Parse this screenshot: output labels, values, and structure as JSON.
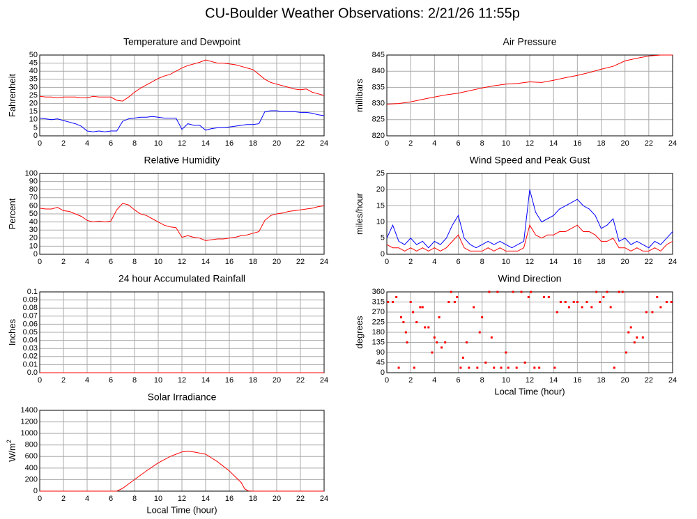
{
  "title": "CU-Boulder Weather Observations: 2/21/26 11:55p",
  "chart_data": [
    {
      "type": "line",
      "title": "Temperature and Dewpoint",
      "ylabel": "Fahrenheit",
      "grid": true,
      "xlim": [
        0,
        24
      ],
      "xticks": [
        0,
        2,
        4,
        6,
        8,
        10,
        12,
        14,
        16,
        18,
        20,
        22,
        24
      ],
      "ylim": [
        0,
        50
      ],
      "yticks": [
        0,
        5,
        10,
        15,
        20,
        25,
        30,
        35,
        40,
        45,
        50
      ],
      "x": [
        0,
        0.5,
        1,
        1.5,
        2,
        2.5,
        3,
        3.5,
        4,
        4.5,
        5,
        5.5,
        6,
        6.5,
        7,
        7.5,
        8,
        8.5,
        9,
        9.5,
        10,
        10.5,
        11,
        11.5,
        12,
        12.5,
        13,
        13.5,
        14,
        14.5,
        15,
        15.5,
        16,
        16.5,
        17,
        17.5,
        18,
        18.5,
        19,
        19.5,
        20,
        20.5,
        21,
        21.5,
        22,
        22.5,
        23,
        23.5,
        24
      ],
      "series": [
        {
          "color": "#ff0000",
          "values": [
            24.5,
            24,
            24,
            23.5,
            24,
            24,
            24,
            23.5,
            23.5,
            24.5,
            24,
            24,
            24,
            22,
            21.5,
            24,
            27,
            29.5,
            31.5,
            33.5,
            35.5,
            37,
            38,
            40,
            42,
            43.5,
            44.5,
            45.5,
            47,
            46,
            45,
            45,
            44.5,
            44,
            43,
            42,
            41,
            38,
            35,
            33,
            32,
            31,
            30,
            29,
            28.5,
            29,
            27,
            26,
            25
          ]
        },
        {
          "color": "#0000ff",
          "values": [
            11,
            10.5,
            10,
            10.5,
            9.5,
            8.5,
            7.5,
            6,
            3,
            2.5,
            3,
            2.5,
            3,
            3,
            9,
            10.5,
            11,
            11.5,
            11.5,
            12,
            11.5,
            11,
            11,
            11,
            4,
            7.5,
            6.5,
            6.5,
            3.5,
            4.5,
            5,
            5,
            5.5,
            6,
            6.5,
            7,
            7,
            7.5,
            15,
            15.5,
            15.5,
            15,
            15,
            15,
            14.5,
            14.5,
            14,
            13,
            12.5
          ]
        }
      ]
    },
    {
      "type": "line",
      "title": "Air Pressure",
      "ylabel": "millibars",
      "grid": true,
      "xlim": [
        0,
        24
      ],
      "xticks": [
        0,
        2,
        4,
        6,
        8,
        10,
        12,
        14,
        16,
        18,
        20,
        22,
        24
      ],
      "ylim": [
        820,
        845
      ],
      "yticks": [
        820,
        825,
        830,
        835,
        840,
        845
      ],
      "x": [
        0,
        1,
        2,
        3,
        4,
        5,
        6,
        7,
        8,
        9,
        10,
        11,
        12,
        13,
        14,
        15,
        16,
        17,
        18,
        19,
        20,
        21,
        22,
        23,
        24
      ],
      "series": [
        {
          "color": "#ff0000",
          "values": [
            829.8,
            830,
            830.5,
            831.3,
            832,
            832.7,
            833.2,
            834,
            834.8,
            835.5,
            836,
            836.2,
            836.7,
            836.5,
            837.2,
            838,
            838.7,
            839.6,
            840.6,
            841.5,
            843.2,
            844,
            844.7,
            845,
            845
          ]
        }
      ]
    },
    {
      "type": "line",
      "title": "Relative Humidity",
      "ylabel": "Percent",
      "grid": true,
      "xlim": [
        0,
        24
      ],
      "xticks": [
        0,
        2,
        4,
        6,
        8,
        10,
        12,
        14,
        16,
        18,
        20,
        22,
        24
      ],
      "ylim": [
        0,
        100
      ],
      "yticks": [
        0,
        10,
        20,
        30,
        40,
        50,
        60,
        70,
        80,
        90,
        100
      ],
      "x": [
        0,
        0.5,
        1,
        1.5,
        2,
        2.5,
        3,
        3.5,
        4,
        4.5,
        5,
        5.5,
        6,
        6.5,
        7,
        7.5,
        8,
        8.5,
        9,
        9.5,
        10,
        10.5,
        11,
        11.5,
        12,
        12.5,
        13,
        13.5,
        14,
        14.5,
        15,
        15.5,
        16,
        16.5,
        17,
        17.5,
        18,
        18.5,
        19,
        19.5,
        20,
        20.5,
        21,
        21.5,
        22,
        22.5,
        23,
        23.5,
        24
      ],
      "series": [
        {
          "color": "#ff0000",
          "values": [
            57,
            56,
            56,
            58,
            54,
            53,
            50,
            47,
            42,
            40,
            41,
            40,
            41,
            55,
            63,
            61,
            55,
            50,
            48,
            44,
            40,
            36,
            34,
            33,
            21,
            23,
            21,
            20,
            17,
            18,
            19,
            19,
            20,
            21,
            23,
            24,
            26,
            28,
            42,
            48,
            50,
            51,
            53,
            54,
            55,
            56,
            57,
            59,
            60
          ]
        }
      ]
    },
    {
      "type": "line",
      "title": "Wind Speed and Peak Gust",
      "ylabel": "miles/hour",
      "grid": true,
      "xlim": [
        0,
        24
      ],
      "xticks": [
        0,
        2,
        4,
        6,
        8,
        10,
        12,
        14,
        16,
        18,
        20,
        22,
        24
      ],
      "ylim": [
        0,
        25
      ],
      "yticks": [
        0,
        5,
        10,
        15,
        20,
        25
      ],
      "x": [
        0,
        0.5,
        1,
        1.5,
        2,
        2.5,
        3,
        3.5,
        4,
        4.5,
        5,
        5.5,
        6,
        6.5,
        7,
        7.5,
        8,
        8.5,
        9,
        9.5,
        10,
        10.5,
        11,
        11.5,
        12,
        12.5,
        13,
        13.5,
        14,
        14.5,
        15,
        15.5,
        16,
        16.5,
        17,
        17.5,
        18,
        18.5,
        19,
        19.5,
        20,
        20.5,
        21,
        21.5,
        22,
        22.5,
        23,
        23.5,
        24
      ],
      "series": [
        {
          "color": "#0000ff",
          "values": [
            5,
            9,
            4,
            3,
            5,
            3,
            4,
            2,
            4,
            3,
            5,
            9,
            12,
            5,
            3,
            2,
            3,
            4,
            3,
            4,
            3,
            2,
            3,
            4,
            20,
            13,
            10,
            11,
            12,
            14,
            15,
            16,
            17,
            15,
            14,
            12,
            8,
            9,
            11,
            4,
            5,
            3,
            4,
            3,
            2,
            4,
            3,
            5,
            7
          ]
        },
        {
          "color": "#ff0000",
          "values": [
            3,
            2,
            2,
            1,
            2,
            1,
            2,
            1,
            2,
            1,
            2,
            4,
            6,
            2,
            1,
            1,
            1,
            2,
            1,
            2,
            1,
            1,
            1,
            2,
            9,
            6,
            5,
            6,
            6,
            7,
            7,
            8,
            9,
            7,
            7,
            6,
            4,
            4,
            5,
            2,
            2,
            1,
            2,
            1,
            1,
            2,
            1,
            3,
            4
          ]
        }
      ]
    },
    {
      "type": "line",
      "title": "24 hour Accumulated Rainfall",
      "ylabel": "Inches",
      "grid": true,
      "xlim": [
        0,
        24
      ],
      "xticks": [
        0,
        2,
        4,
        6,
        8,
        10,
        12,
        14,
        16,
        18,
        20,
        22,
        24
      ],
      "ylim": [
        0,
        0.1
      ],
      "yticks": [
        {
          "value": 0,
          "label": "0.0"
        },
        0.01,
        0.02,
        0.03,
        0.04,
        0.05,
        0.06,
        0.07,
        0.08,
        0.09,
        0.1
      ],
      "x": [
        0,
        24
      ],
      "series": [
        {
          "color": "#ff0000",
          "values": [
            0,
            0
          ]
        }
      ]
    },
    {
      "type": "scatter",
      "title": "Wind Direction",
      "ylabel": "degrees",
      "xlabel": "Local Time (hour)",
      "grid": true,
      "xlim": [
        0,
        24
      ],
      "xticks": [
        0,
        2,
        4,
        6,
        8,
        10,
        12,
        14,
        16,
        18,
        20,
        22,
        24
      ],
      "ylim": [
        0,
        360
      ],
      "yticks": [
        0,
        45,
        90,
        135,
        180,
        225,
        270,
        315,
        360
      ],
      "x": [
        0.1,
        0.5,
        0.8,
        1,
        1.2,
        1.4,
        1.6,
        1.7,
        2,
        2.2,
        2.3,
        2.5,
        2.8,
        3,
        3.2,
        3.5,
        3.8,
        4,
        4.2,
        4.4,
        4.6,
        4.9,
        5.2,
        5.4,
        5.7,
        5.9,
        6.2,
        6.4,
        6.7,
        6.9,
        7.3,
        7.6,
        7.8,
        8,
        8.3,
        8.6,
        8.8,
        9,
        9.3,
        9.6,
        10,
        10.2,
        10.6,
        10.9,
        11.3,
        11.6,
        11.9,
        12.1,
        12.4,
        12.8,
        13.2,
        13.6,
        14.1,
        14.3,
        14.6,
        15,
        15.3,
        15.7,
        16,
        16.4,
        16.8,
        17.2,
        17.6,
        17.9,
        18.2,
        18.5,
        18.8,
        19.1,
        19.5,
        19.8,
        20.1,
        20.3,
        20.5,
        20.8,
        21,
        21.5,
        21.8,
        22.3,
        22.7,
        23,
        23.5,
        23.9
      ],
      "series": [
        {
          "color": "#ff0000",
          "values": [
            315,
            315,
            337,
            22,
            247,
            225,
            180,
            135,
            315,
            270,
            22,
            225,
            292,
            292,
            202,
            202,
            90,
            157,
            135,
            247,
            112,
            135,
            315,
            360,
            315,
            337,
            22,
            67,
            135,
            22,
            292,
            22,
            180,
            247,
            45,
            360,
            157,
            22,
            360,
            22,
            90,
            22,
            360,
            22,
            360,
            45,
            337,
            360,
            22,
            22,
            337,
            337,
            22,
            270,
            315,
            315,
            292,
            315,
            315,
            292,
            315,
            292,
            360,
            315,
            337,
            360,
            292,
            22,
            360,
            360,
            90,
            180,
            202,
            135,
            157,
            157,
            270,
            270,
            337,
            292,
            315,
            315
          ]
        }
      ]
    },
    {
      "type": "line",
      "title": "Solar Irradiance",
      "ylabel": "W/m",
      "ylabel_sup": "2",
      "xlabel": "Local Time (hour)",
      "grid": true,
      "xlim": [
        0,
        24
      ],
      "xticks": [
        0,
        2,
        4,
        6,
        8,
        10,
        12,
        14,
        16,
        18,
        20,
        22,
        24
      ],
      "ylim": [
        0,
        1400
      ],
      "yticks": [
        0,
        200,
        400,
        600,
        800,
        1000,
        1200,
        1400
      ],
      "x": [
        0,
        6.5,
        7,
        8,
        9,
        10,
        11,
        12,
        12.5,
        13,
        14,
        15,
        16,
        17,
        17.3,
        17.6,
        18,
        24
      ],
      "series": [
        {
          "color": "#ff0000",
          "values": [
            0,
            0,
            50,
            200,
            350,
            490,
            600,
            680,
            690,
            680,
            640,
            510,
            350,
            150,
            40,
            5,
            0,
            0
          ]
        }
      ]
    }
  ]
}
